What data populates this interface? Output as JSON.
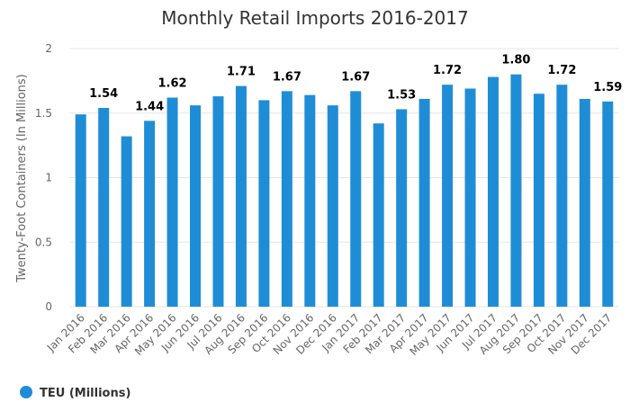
{
  "chart_data": {
    "type": "bar",
    "title": "Monthly Retail Imports 2016-2017",
    "xlabel": "",
    "ylabel": "Twenty-Foot Containers (In Millions)",
    "ylim": [
      0,
      2
    ],
    "yticks": [
      "0",
      "0.5",
      "1",
      "1.5",
      "2"
    ],
    "grid": true,
    "legend_position": "bottom-left",
    "categories": [
      "Jan 2016",
      "Feb 2016",
      "Mar 2016",
      "Apr 2016",
      "May 2016",
      "Jun 2016",
      "Jul 2016",
      "Aug 2016",
      "Sep 2016",
      "Oct 2016",
      "Nov 2016",
      "Dec 2016",
      "Jan 2017",
      "Feb 2017",
      "Mar 2017",
      "Apr 2017",
      "May 2017",
      "Jun 2017",
      "Jul 2017",
      "Aug 2017",
      "Sep 2017",
      "Oct 2017",
      "Nov 2017",
      "Dec 2017"
    ],
    "series": [
      {
        "name": "TEU (Millions)",
        "color": "#1f8dd6",
        "values": [
          1.49,
          1.54,
          1.32,
          1.44,
          1.62,
          1.56,
          1.63,
          1.71,
          1.6,
          1.67,
          1.64,
          1.56,
          1.67,
          1.42,
          1.53,
          1.61,
          1.72,
          1.69,
          1.78,
          1.8,
          1.65,
          1.72,
          1.61,
          1.59
        ]
      }
    ],
    "data_labels": [
      {
        "index": 1,
        "text": "1.54"
      },
      {
        "index": 3,
        "text": "1.44"
      },
      {
        "index": 4,
        "text": "1.62"
      },
      {
        "index": 7,
        "text": "1.71"
      },
      {
        "index": 9,
        "text": "1.67"
      },
      {
        "index": 12,
        "text": "1.67"
      },
      {
        "index": 14,
        "text": "1.53"
      },
      {
        "index": 16,
        "text": "1.72"
      },
      {
        "index": 19,
        "text": "1.80"
      },
      {
        "index": 21,
        "text": "1.72"
      },
      {
        "index": 23,
        "text": "1.59"
      }
    ]
  }
}
